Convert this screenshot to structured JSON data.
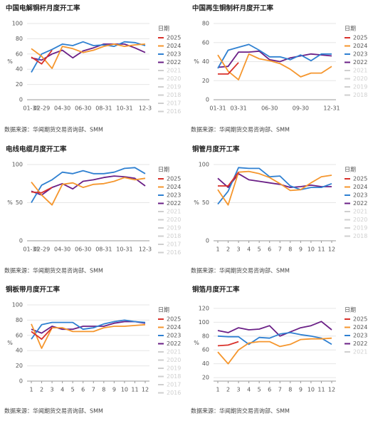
{
  "chart_data": [
    {
      "type": "line",
      "title": "中国电解铜杆月度开工率",
      "source": "数据来源：华闻期货交易咨询部、SMM",
      "y_label": "%",
      "legend_title": "日期",
      "categories": [
        "01-31",
        "02-29",
        null,
        "04-30",
        null,
        "06-30",
        null,
        "08-31",
        null,
        "10-31",
        null,
        "12-3"
      ],
      "ylim": [
        0,
        100
      ],
      "yticks": [
        0,
        20,
        40,
        60,
        80,
        100
      ],
      "grid": true,
      "series": [
        {
          "name": "2025",
          "color": "#d9312b",
          "values": [
            56,
            47,
            65,
            null,
            null,
            null,
            null,
            null,
            null,
            null,
            null,
            null
          ]
        },
        {
          "name": "2024",
          "color": "#f5962d",
          "values": [
            67,
            57,
            41,
            70,
            67,
            62,
            65,
            70,
            73,
            70,
            72,
            73
          ]
        },
        {
          "name": "2023",
          "color": "#2f80d1",
          "values": [
            36,
            60,
            66,
            73,
            71,
            76,
            71,
            72,
            70,
            76,
            75,
            71
          ]
        },
        {
          "name": "2022",
          "color": "#6a1f86",
          "values": [
            55,
            52,
            60,
            65,
            55,
            64,
            68,
            73,
            73,
            73,
            68,
            62
          ]
        }
      ],
      "legend_inactive": [
        "2021",
        "2020",
        "2019",
        "2018",
        "2017",
        "2016"
      ],
      "legend_inactive_color": "#cfcfcf"
    },
    {
      "type": "line",
      "title": "中国再生铜制杆月度开工率",
      "source": "数据来源：华闻期货交易咨询部、SMM",
      "y_label": "%",
      "legend_title": "日期",
      "categories": [
        "01-31",
        null,
        "03-31",
        null,
        null,
        "06-30",
        null,
        null,
        "09-30",
        null,
        null,
        "12-31"
      ],
      "ylim": [
        0,
        80
      ],
      "yticks": [
        0,
        20,
        40,
        60,
        80
      ],
      "grid": true,
      "series": [
        {
          "name": "2025",
          "color": "#d9312b",
          "values": [
            27,
            27,
            39,
            null,
            null,
            null,
            null,
            null,
            null,
            null,
            null,
            null
          ]
        },
        {
          "name": "2024",
          "color": "#f5962d",
          "values": [
            47,
            30,
            21,
            48,
            43,
            41,
            38,
            32,
            24,
            28,
            28,
            35
          ]
        },
        {
          "name": "2023",
          "color": "#2f80d1",
          "values": [
            33,
            52,
            55,
            58,
            52,
            45,
            45,
            42,
            47,
            41,
            48,
            48
          ]
        },
        {
          "name": "2022",
          "color": "#6a1f86",
          "values": [
            34,
            35,
            50,
            50,
            51,
            42,
            40,
            44,
            46,
            48,
            47,
            46
          ]
        }
      ],
      "legend_inactive": [
        "2021",
        "2020",
        "2019",
        "2018"
      ],
      "legend_inactive_color": "#cfcfcf"
    },
    {
      "type": "line",
      "title": "电线电缆月度开工率",
      "source": "数据来源：华闻期货交易咨询部、SMM",
      "y_label": "%",
      "legend_title": "日期",
      "categories": [
        "01-31",
        "02-29",
        null,
        "04-30",
        null,
        "06-30",
        null,
        "08-31",
        null,
        "10-31",
        null,
        "12-3"
      ],
      "ylim": [
        0,
        100
      ],
      "yticks": [
        0,
        50,
        100
      ],
      "grid": true,
      "series": [
        {
          "name": "2025",
          "color": "#d9312b",
          "values": [
            64,
            63,
            70,
            null,
            null,
            null,
            null,
            null,
            null,
            null,
            null,
            null
          ]
        },
        {
          "name": "2024",
          "color": "#f5962d",
          "values": [
            77,
            60,
            47,
            74,
            76,
            70,
            74,
            75,
            78,
            83,
            80,
            82
          ]
        },
        {
          "name": "2023",
          "color": "#2f80d1",
          "values": [
            50,
            73,
            80,
            90,
            88,
            92,
            88,
            88,
            90,
            95,
            96,
            88
          ]
        },
        {
          "name": "2022",
          "color": "#6a1f86",
          "values": [
            65,
            60,
            70,
            75,
            68,
            78,
            80,
            83,
            85,
            84,
            82,
            72
          ]
        }
      ],
      "legend_inactive": [
        "2021",
        "2020",
        "2019",
        "2018",
        "2017",
        "2016"
      ],
      "legend_inactive_color": "#cfcfcf"
    },
    {
      "type": "line",
      "title": "铜管月度开工率",
      "source": "数据来源：华闻期货交易咨询部、SMM",
      "y_label": "%",
      "legend_title": "日期",
      "x": [
        1,
        2,
        3,
        4,
        5,
        6,
        7,
        8,
        9,
        10,
        11,
        12
      ],
      "xlim": [
        1,
        12
      ],
      "xticks": [
        1,
        2,
        3,
        4,
        5,
        6,
        7,
        8,
        9,
        10,
        11,
        12
      ],
      "ylim": [
        0,
        100
      ],
      "yticks": [
        0,
        50,
        100
      ],
      "grid": true,
      "series": [
        {
          "name": "2025",
          "color": "#d9312b",
          "values": [
            72,
            72,
            90,
            null,
            null,
            null,
            null,
            null,
            null,
            null,
            null,
            null
          ]
        },
        {
          "name": "2024",
          "color": "#f5962d",
          "values": [
            67,
            47,
            90,
            91,
            88,
            83,
            75,
            66,
            67,
            76,
            84,
            86
          ]
        },
        {
          "name": "2023",
          "color": "#2f80d1",
          "values": [
            48,
            65,
            96,
            95,
            95,
            84,
            85,
            72,
            67,
            70,
            70,
            75
          ]
        },
        {
          "name": "2022",
          "color": "#6a1f86",
          "values": [
            82,
            70,
            88,
            80,
            78,
            76,
            74,
            70,
            71,
            73,
            71,
            71
          ]
        }
      ],
      "legend_inactive": [
        "2021",
        "2020",
        "2019",
        "2018"
      ],
      "legend_inactive_color": "#cfcfcf"
    },
    {
      "type": "line",
      "title": "铜板带月度开工率",
      "source": "数据来源：华闻期货交易咨询部、SMM",
      "y_label": "%",
      "legend_title": "日期",
      "x": [
        1,
        2,
        3,
        4,
        5,
        6,
        7,
        8,
        9,
        10,
        11,
        12
      ],
      "xlim": [
        1,
        12
      ],
      "xticks": [
        1,
        2,
        3,
        4,
        5,
        6,
        7,
        8,
        9,
        10,
        11,
        12
      ],
      "ylim": [
        0,
        100
      ],
      "yticks": [
        0,
        20,
        40,
        60,
        80,
        100
      ],
      "grid": true,
      "series": [
        {
          "name": "2025",
          "color": "#d9312b",
          "values": [
            65,
            55,
            70,
            null,
            null,
            null,
            null,
            null,
            null,
            null,
            null,
            null
          ]
        },
        {
          "name": "2024",
          "color": "#f5962d",
          "values": [
            75,
            43,
            70,
            70,
            65,
            65,
            65,
            70,
            72,
            72,
            73,
            74
          ]
        },
        {
          "name": "2023",
          "color": "#2f80d1",
          "values": [
            55,
            74,
            77,
            77,
            77,
            68,
            70,
            75,
            78,
            80,
            78,
            77
          ]
        },
        {
          "name": "2022",
          "color": "#6a1f86",
          "values": [
            68,
            63,
            72,
            68,
            68,
            72,
            72,
            72,
            76,
            78,
            78,
            76
          ]
        }
      ],
      "legend_inactive": [
        "2021",
        "2020",
        "2019",
        "2018",
        "2017",
        "2016"
      ],
      "legend_inactive_color": "#cfcfcf"
    },
    {
      "type": "line",
      "title": "铜箔月度开工率",
      "source": "数据来源：华闻期货交易咨询部、SMM",
      "y_label": "%",
      "legend_title": "日期",
      "x": [
        1,
        2,
        3,
        4,
        5,
        6,
        7,
        8,
        9,
        10,
        11,
        12
      ],
      "xlim": [
        1,
        12
      ],
      "xticks": [
        1,
        2,
        3,
        4,
        5,
        6,
        7,
        8,
        9,
        10,
        11,
        12
      ],
      "ylim": [
        15,
        125
      ],
      "yticks": [
        20,
        40,
        60,
        80,
        100,
        120
      ],
      "grid": true,
      "series": [
        {
          "name": "2025",
          "color": "#d9312b",
          "values": [
            66,
            67,
            72,
            null,
            null,
            null,
            null,
            null,
            null,
            null,
            null,
            null
          ]
        },
        {
          "name": "2024",
          "color": "#f5962d",
          "values": [
            57,
            40,
            60,
            70,
            72,
            72,
            65,
            68,
            75,
            76,
            76,
            77
          ]
        },
        {
          "name": "2023",
          "color": "#2f80d1",
          "values": [
            80,
            79,
            79,
            68,
            78,
            77,
            83,
            85,
            82,
            80,
            77,
            68
          ]
        },
        {
          "name": "2022",
          "color": "#6a1f86",
          "values": [
            88,
            85,
            92,
            89,
            90,
            95,
            80,
            86,
            92,
            95,
            101,
            89
          ]
        }
      ],
      "legend_inactive": [
        "2021"
      ],
      "legend_inactive_color": "#cfcfcf"
    }
  ]
}
